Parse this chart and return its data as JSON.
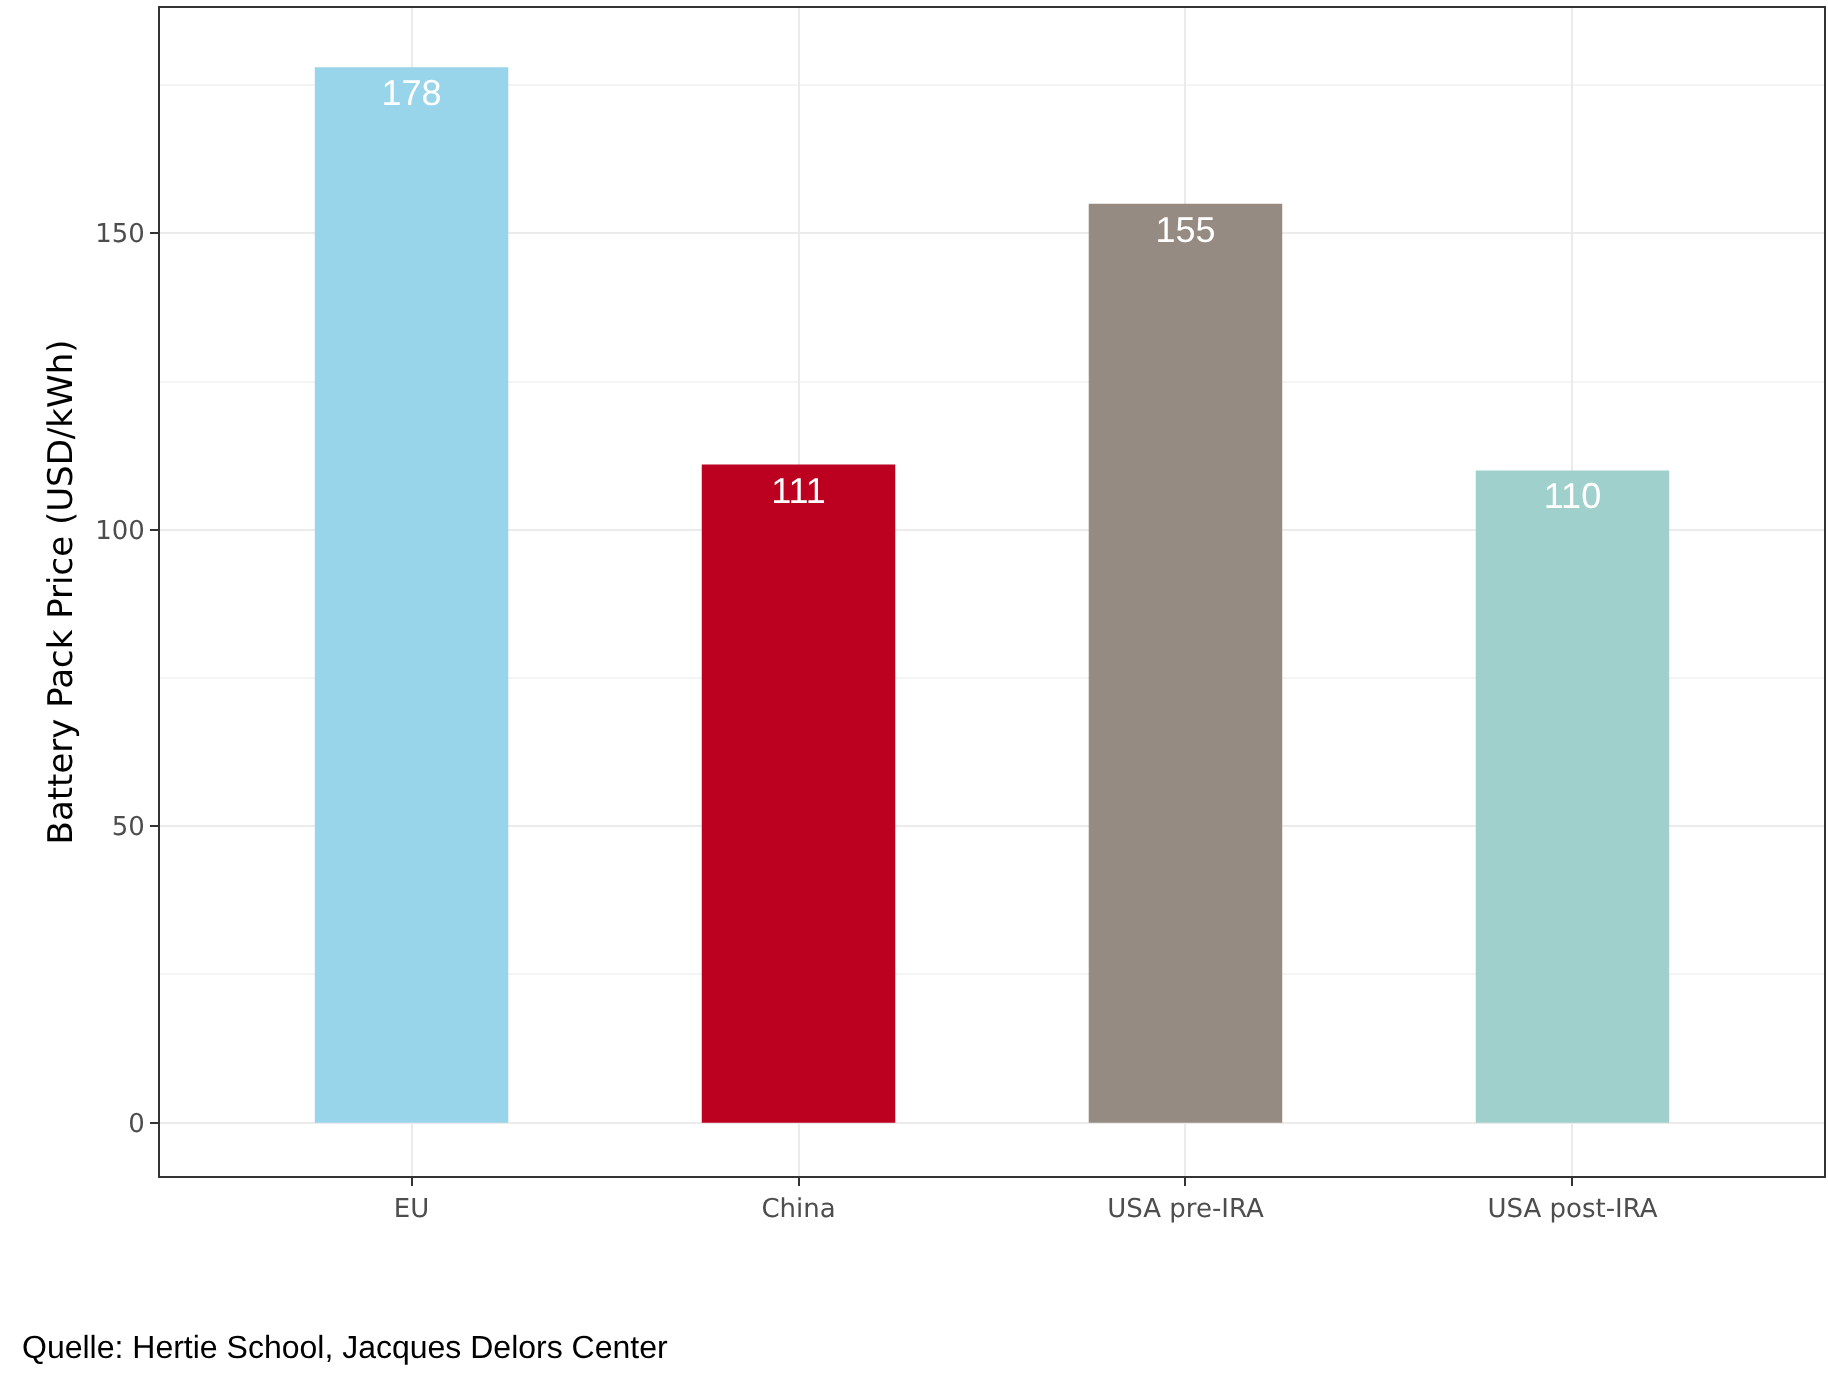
{
  "chart_data": {
    "type": "bar",
    "ylabel": "Battery Pack Price (USD/kWh)",
    "categories": [
      "EU",
      "China",
      "USA pre-IRA",
      "USA post-IRA"
    ],
    "values": [
      178,
      111,
      155,
      110
    ],
    "colors": [
      "#98d5ea",
      "#bb0020",
      "#968b82",
      "#a0d0cb"
    ],
    "ylim": [
      -9,
      188
    ],
    "yticks": [
      0,
      50,
      100,
      150
    ],
    "grid": true,
    "data_labels": true,
    "annotations": [
      "Quelle: Hertie School, Jacques Delors Center"
    ]
  }
}
